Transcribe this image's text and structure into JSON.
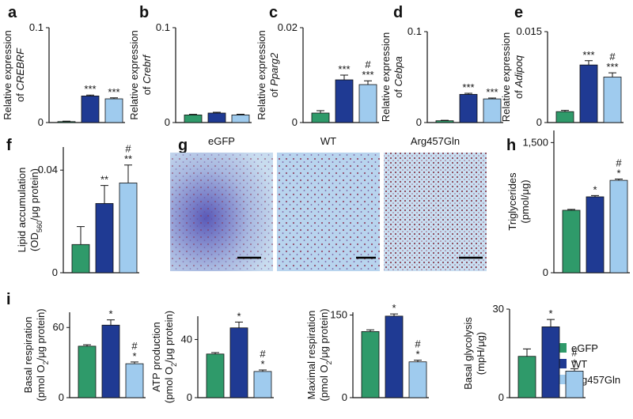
{
  "chart_data": [
    {
      "type": "bar",
      "panel": "a",
      "ylabel": [
        [
          {
            "text": "Relative expression"
          }
        ],
        [
          {
            "text": "of "
          },
          {
            "text": "CREBRF",
            "italic": true
          }
        ]
      ],
      "values": [
        0.001,
        0.028,
        0.025
      ],
      "errors": [
        0.0005,
        0.001,
        0.001
      ],
      "significance": [
        null,
        "***",
        "***"
      ],
      "ylim": [
        0,
        0.1
      ],
      "yticks": [
        0,
        0.1
      ]
    },
    {
      "type": "bar",
      "panel": "b",
      "ylabel": [
        [
          {
            "text": "Relative expression"
          }
        ],
        [
          {
            "text": "of "
          },
          {
            "text": "Crebrf",
            "italic": true
          }
        ]
      ],
      "values": [
        0.008,
        0.01,
        0.008
      ],
      "errors": [
        0.0006,
        0.0008,
        0.0008
      ],
      "significance": [
        null,
        null,
        null
      ],
      "ylim": [
        0,
        0.1
      ],
      "yticks": [
        0,
        0.1
      ]
    },
    {
      "type": "bar",
      "panel": "c",
      "ylabel": [
        [
          {
            "text": "Relative expression"
          }
        ],
        [
          {
            "text": "of "
          },
          {
            "text": "Pparg2",
            "italic": true
          }
        ]
      ],
      "values": [
        0.002,
        0.009,
        0.008
      ],
      "errors": [
        0.0005,
        0.001,
        0.0008
      ],
      "significance": [
        null,
        "***",
        [
          "#",
          "***"
        ]
      ],
      "ylim": [
        0,
        0.02
      ],
      "yticks": [
        0,
        0.02
      ]
    },
    {
      "type": "bar",
      "panel": "d",
      "ylabel": [
        [
          {
            "text": "Relative expression"
          }
        ],
        [
          {
            "text": "of "
          },
          {
            "text": "Cebpa",
            "italic": true
          }
        ]
      ],
      "values": [
        0.002,
        0.031,
        0.026
      ],
      "errors": [
        0.0005,
        0.0012,
        0.001
      ],
      "significance": [
        null,
        "***",
        "***"
      ],
      "ylim": [
        0,
        0.1
      ],
      "yticks": [
        0,
        0.1
      ]
    },
    {
      "type": "bar",
      "panel": "e",
      "ylabel": [
        [
          {
            "text": "Relative expression"
          }
        ],
        [
          {
            "text": "of "
          },
          {
            "text": "Adipoq",
            "italic": true
          }
        ]
      ],
      "values": [
        0.0018,
        0.0095,
        0.0075
      ],
      "errors": [
        0.0002,
        0.0007,
        0.0007
      ],
      "significance": [
        null,
        "***",
        [
          "#",
          "***"
        ]
      ],
      "ylim": [
        0,
        0.015
      ],
      "yticks": [
        0,
        0.015
      ]
    },
    {
      "type": "bar",
      "panel": "f",
      "ylabel": [
        [
          {
            "text": "Lipid accumulation"
          }
        ],
        [
          {
            "text": "(OD"
          },
          {
            "text": "560",
            "sub": true
          },
          {
            "text": "/μg protein)"
          }
        ]
      ],
      "values": [
        0.011,
        0.027,
        0.035
      ],
      "errors": [
        0.007,
        0.007,
        0.007
      ],
      "significance": [
        null,
        "**",
        [
          "#",
          "**"
        ]
      ],
      "ylim": [
        0,
        0.049
      ],
      "yticks": [
        0,
        0.04
      ]
    },
    {
      "type": "bar",
      "panel": "h",
      "ylabel": [
        [
          {
            "text": "Triglycerides"
          }
        ],
        [
          {
            "text": "(pmol/μg)"
          }
        ]
      ],
      "values": [
        720,
        875,
        1065
      ],
      "errors": [
        10,
        15,
        15
      ],
      "significance": [
        null,
        "*",
        [
          "#",
          "*"
        ]
      ],
      "ylim": [
        0,
        1640
      ],
      "yticks": [
        0,
        {
          "value": 1500,
          "label": "1,500"
        }
      ]
    },
    {
      "type": "bar",
      "panel": "i",
      "ylabel": [
        [
          {
            "text": "Basal respiration"
          }
        ],
        [
          {
            "text": "(pmol O"
          },
          {
            "text": "2",
            "sub": true
          },
          {
            "text": "/μg protein)"
          }
        ]
      ],
      "values": [
        44,
        62,
        29
      ],
      "errors": [
        1.2,
        4.5,
        1.5
      ],
      "significance": [
        null,
        "*",
        [
          "#",
          "*"
        ]
      ],
      "ylim": [
        0,
        73
      ],
      "yticks": [
        0,
        60
      ]
    },
    {
      "type": "bar",
      "ylabel": [
        [
          {
            "text": "ATP production"
          }
        ],
        [
          {
            "text": "(pmol O"
          },
          {
            "text": "2",
            "sub": true
          },
          {
            "text": "/μg protein)"
          }
        ]
      ],
      "values": [
        30,
        48,
        18
      ],
      "errors": [
        1,
        4,
        1
      ],
      "significance": [
        null,
        "*",
        [
          "#",
          "*"
        ]
      ],
      "ylim": [
        0,
        56
      ],
      "yticks": [
        0,
        40
      ]
    },
    {
      "type": "bar",
      "ylabel": [
        [
          {
            "text": "Maximal respiration"
          }
        ],
        [
          {
            "text": "(pmol O"
          },
          {
            "text": "2",
            "sub": true
          },
          {
            "text": "/μg protein)"
          }
        ]
      ],
      "values": [
        120,
        148,
        65
      ],
      "errors": [
        3,
        4,
        3
      ],
      "significance": [
        null,
        "*",
        [
          "#",
          "*"
        ]
      ],
      "ylim": [
        0,
        155
      ],
      "yticks": [
        0,
        150
      ]
    },
    {
      "type": "bar",
      "ylabel": [
        [
          {
            "text": "Basal glycolysis"
          }
        ],
        [
          {
            "text": "(mpH/μg)"
          }
        ]
      ],
      "values": [
        14,
        24,
        9
      ],
      "errors": [
        2.5,
        2.5,
        0.8
      ],
      "significance": [
        null,
        "*",
        [
          "#",
          "*"
        ]
      ],
      "ylim": [
        0,
        30
      ],
      "yticks": [
        0,
        30
      ]
    }
  ],
  "micrographs": {
    "panel": "g",
    "labels": [
      "eGFP",
      "WT",
      "Arg457Gln"
    ]
  },
  "legend": [
    {
      "name": "eGFP",
      "color": "#2f9a6a"
    },
    {
      "name": "WT",
      "color": "#1f3a93"
    },
    {
      "name": "Arg457Gln",
      "color": "#9fcbee"
    }
  ]
}
